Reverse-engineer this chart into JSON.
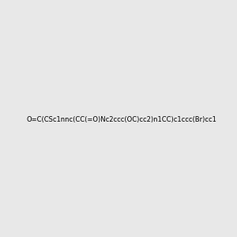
{
  "smiles": "O=C(CSc1nnc(CC(=O)Nc2ccc(OC)cc2)n1CC)c1ccc(Br)cc1",
  "image_size": 300,
  "background_color": "#e8e8e8",
  "title": ""
}
